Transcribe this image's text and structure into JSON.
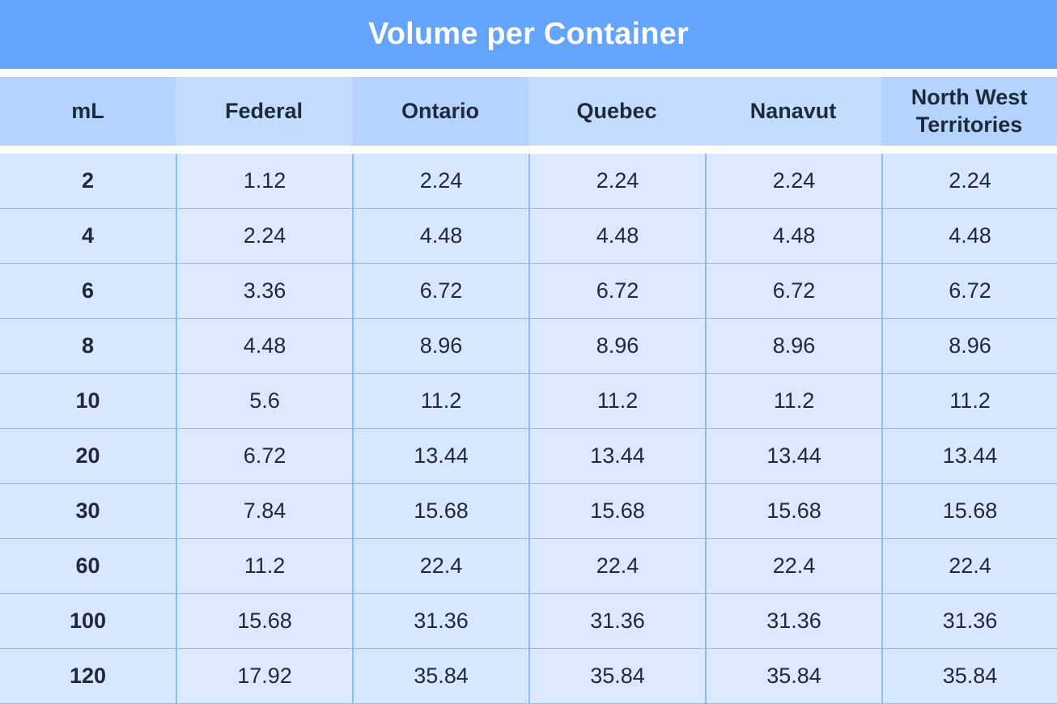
{
  "title": "Volume per Container",
  "table": {
    "headers": [
      "mL",
      "Federal",
      "Ontario",
      "Quebec",
      "Nanavut",
      "North West Territories"
    ],
    "rows": [
      [
        "2",
        "1.12",
        "2.24",
        "2.24",
        "2.24",
        "2.24"
      ],
      [
        "4",
        "2.24",
        "4.48",
        "4.48",
        "4.48",
        "4.48"
      ],
      [
        "6",
        "3.36",
        "6.72",
        "6.72",
        "6.72",
        "6.72"
      ],
      [
        "8",
        "4.48",
        "8.96",
        "8.96",
        "8.96",
        "8.96"
      ],
      [
        "10",
        "5.6",
        "11.2",
        "11.2",
        "11.2",
        "11.2"
      ],
      [
        "20",
        "6.72",
        "13.44",
        "13.44",
        "13.44",
        "13.44"
      ],
      [
        "30",
        "7.84",
        "15.68",
        "15.68",
        "15.68",
        "15.68"
      ],
      [
        "60",
        "11.2",
        "22.4",
        "22.4",
        "22.4",
        "22.4"
      ],
      [
        "100",
        "15.68",
        "31.36",
        "31.36",
        "31.36",
        "31.36"
      ],
      [
        "120",
        "17.92",
        "35.84",
        "35.84",
        "35.84",
        "35.84"
      ]
    ]
  },
  "colors": {
    "title_bar": "#63a4ff",
    "header_light": "#c4dcff",
    "header_dark": "#b4d3ff",
    "cell_bg": "#d7e7ff",
    "grid_line": "#8cbcf5",
    "text": "#1f2a38"
  }
}
